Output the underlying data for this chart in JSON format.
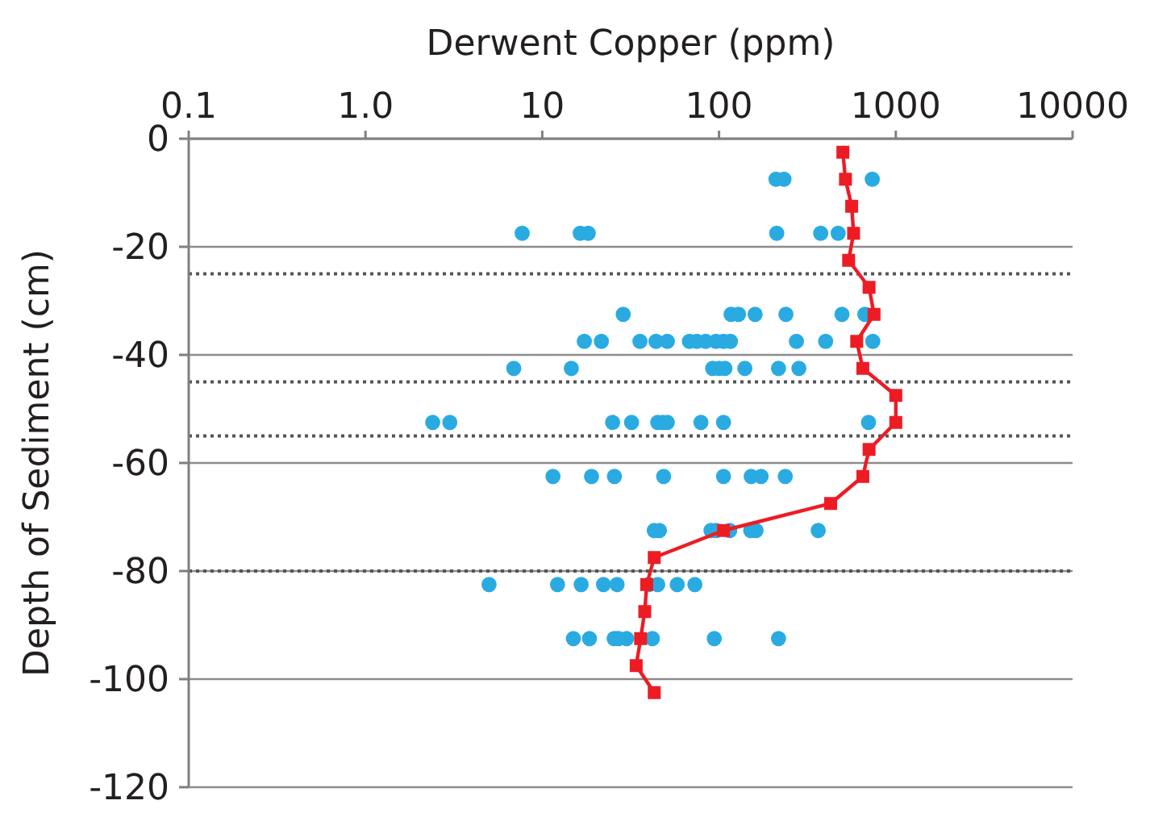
{
  "chart_data": {
    "type": "scatter",
    "xlabel": "Derwent Copper (ppm)",
    "ylabel": "Depth of Sediment (cm)",
    "log": "x",
    "xlim": [
      0.1,
      10000
    ],
    "xticks": [
      0.1,
      {
        "value": 1,
        "label": "1.0"
      },
      10,
      100,
      1000,
      10000
    ],
    "ylim": [
      -120,
      0
    ],
    "yticks": [
      0,
      -20,
      -40,
      -60,
      -80,
      -100,
      -120
    ],
    "grid": "y",
    "ref_lines": [
      {
        "axis": "y",
        "value": -25,
        "color": "#555555",
        "line_style": "dotted"
      },
      {
        "axis": "y",
        "value": -45,
        "color": "#555555",
        "line_style": "dotted"
      },
      {
        "axis": "y",
        "value": -55,
        "color": "#555555",
        "line_style": "dotted"
      },
      {
        "axis": "y",
        "value": -80,
        "color": "#555555",
        "line_style": "dotted"
      }
    ],
    "series": [
      {
        "color": "#29abe2",
        "marker": "circle",
        "x": [
          210,
          233,
          736,
          7.7,
          16.4,
          18.2,
          212,
          376,
          472,
          28.7,
          117,
          129,
          160,
          239,
          496,
          668,
          17.3,
          21.6,
          35.7,
          44,
          51,
          68,
          75,
          84,
          96,
          106,
          116,
          274,
          401,
          741,
          6.9,
          14.6,
          92,
          100,
          108,
          140,
          217,
          283,
          2.4,
          3.0,
          25,
          32,
          45,
          48,
          51,
          79,
          106,
          701,
          11.5,
          19,
          25.6,
          48.6,
          106,
          152,
          173,
          237,
          43,
          46,
          90,
          96,
          115,
          151,
          162,
          364,
          5.0,
          12.2,
          16.6,
          22.2,
          26.5,
          40,
          45,
          58,
          73,
          15,
          18.5,
          25.5,
          27,
          30,
          42,
          94,
          217
        ],
        "values": [
          -7.5,
          -7.5,
          -7.5,
          -17.5,
          -17.5,
          -17.5,
          -17.5,
          -17.5,
          -17.5,
          -32.5,
          -32.5,
          -32.5,
          -32.5,
          -32.5,
          -32.5,
          -32.5,
          -37.5,
          -37.5,
          -37.5,
          -37.5,
          -37.5,
          -37.5,
          -37.5,
          -37.5,
          -37.5,
          -37.5,
          -37.5,
          -37.5,
          -37.5,
          -37.5,
          -42.5,
          -42.5,
          -42.5,
          -42.5,
          -42.5,
          -42.5,
          -42.5,
          -42.5,
          -52.5,
          -52.5,
          -52.5,
          -52.5,
          -52.5,
          -52.5,
          -52.5,
          -52.5,
          -52.5,
          -52.5,
          -62.5,
          -62.5,
          -62.5,
          -62.5,
          -62.5,
          -62.5,
          -62.5,
          -62.5,
          -72.5,
          -72.5,
          -72.5,
          -72.5,
          -72.5,
          -72.5,
          -72.5,
          -72.5,
          -82.5,
          -82.5,
          -82.5,
          -82.5,
          -82.5,
          -82.5,
          -82.5,
          -82.5,
          -82.5,
          -92.5,
          -92.5,
          -92.5,
          -92.5,
          -92.5,
          -92.5,
          -92.5,
          -92.5
        ]
      },
      {
        "type": "line",
        "color": "#ed1c24",
        "marker": "square",
        "line_style": "solid",
        "x": [
          502,
          519,
          563,
          577,
          541,
          706,
          753,
          601,
          651,
          1000,
          1000,
          706,
          651,
          428,
          106,
          43,
          39,
          38,
          36,
          34,
          43
        ],
        "values": [
          -2.5,
          -7.5,
          -12.5,
          -17.5,
          -22.5,
          -27.5,
          -32.5,
          -37.5,
          -42.5,
          -47.5,
          -52.5,
          -57.5,
          -62.5,
          -67.5,
          -72.5,
          -77.5,
          -82.5,
          -87.5,
          -92.5,
          -97.5,
          -102.5
        ]
      }
    ]
  }
}
